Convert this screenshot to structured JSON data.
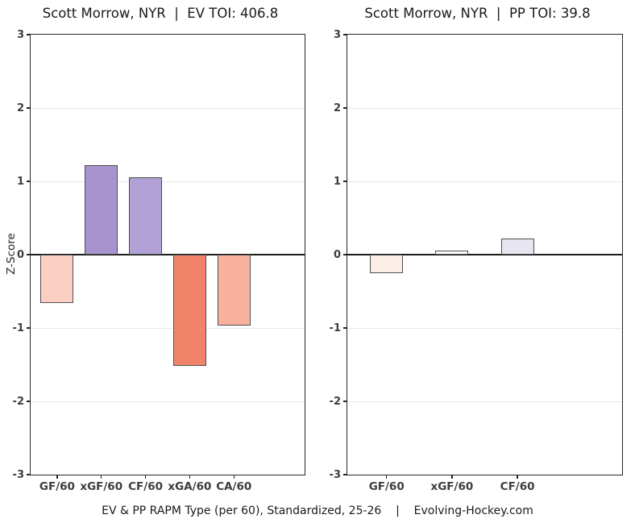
{
  "page": {
    "caption": "EV & PP RAPM Type (per 60), Standardized, 25-26    |    Evolving-Hockey.com"
  },
  "chart_data": [
    {
      "type": "bar",
      "title": "Scott Morrow, NYR  |  EV TOI: 406.8",
      "player": "Scott Morrow",
      "team": "NYR",
      "strength": "EV",
      "toi": 406.8,
      "ylabel": "Z-Score",
      "ylim": [
        -3,
        3
      ],
      "yticks": [
        3,
        2,
        1,
        0,
        -1,
        -2,
        -3
      ],
      "grid": true,
      "legend": "none",
      "categories": [
        "GF/60",
        "xGF/60",
        "CF/60",
        "xGA/60",
        "CA/60"
      ],
      "values": [
        -0.66,
        1.22,
        1.05,
        -1.52,
        -0.97
      ],
      "bar_colors": [
        "#fbd0c3",
        "#a893cf",
        "#b2a1d6",
        "#f0836a",
        "#f9b29e"
      ],
      "bar_border_color": "#4d4d4d"
    },
    {
      "type": "bar",
      "title": "Scott Morrow, NYR  |  PP TOI: 39.8",
      "player": "Scott Morrow",
      "team": "NYR",
      "strength": "PP",
      "toi": 39.8,
      "ylabel": "",
      "ylim": [
        -3,
        3
      ],
      "yticks": [
        3,
        2,
        1,
        0,
        -1,
        -2,
        -3
      ],
      "grid": true,
      "legend": "none",
      "categories": [
        "GF/60",
        "xGF/60",
        "CF/60"
      ],
      "values": [
        -0.25,
        0.05,
        0.22
      ],
      "bar_colors": [
        "#fbeee7",
        "#fdfdfe",
        "#e8e5f2"
      ],
      "bar_border_color": "#4d4d4d"
    }
  ]
}
